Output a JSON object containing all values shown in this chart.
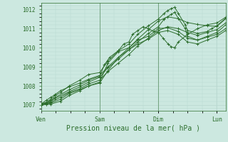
{
  "bg_color": "#cce8e0",
  "line_color": "#2d6e2d",
  "grid_color": "#b8d8d0",
  "ylabel_ticks": [
    1007,
    1008,
    1009,
    1010,
    1011,
    1012
  ],
  "xlabel": "Pression niveau de la mer( hPa )",
  "day_labels": [
    "Ven",
    "Sam",
    "Dim",
    "Lun"
  ],
  "day_positions": [
    0,
    0.333,
    0.667,
    1.0
  ],
  "xlim": [
    0.0,
    1.05
  ],
  "ylim": [
    1006.7,
    1012.35
  ],
  "series": [
    [
      [
        0.0,
        1007.05
      ],
      [
        0.03,
        1007.25
      ],
      [
        0.055,
        1007.4
      ],
      [
        0.08,
        1007.55
      ],
      [
        0.11,
        1007.75
      ],
      [
        0.16,
        1007.95
      ],
      [
        0.22,
        1008.15
      ],
      [
        0.27,
        1008.35
      ],
      [
        0.333,
        1008.55
      ],
      [
        0.38,
        1009.0
      ],
      [
        0.44,
        1009.5
      ],
      [
        0.5,
        1010.0
      ],
      [
        0.55,
        1010.45
      ],
      [
        0.61,
        1010.95
      ],
      [
        0.667,
        1011.4
      ],
      [
        0.72,
        1011.62
      ],
      [
        0.78,
        1011.52
      ],
      [
        0.833,
        1011.32
      ],
      [
        0.89,
        1011.22
      ],
      [
        0.944,
        1011.15
      ],
      [
        1.0,
        1011.12
      ],
      [
        1.05,
        1011.52
      ]
    ],
    [
      [
        0.0,
        1007.05
      ],
      [
        0.03,
        1007.15
      ],
      [
        0.055,
        1007.3
      ],
      [
        0.08,
        1007.5
      ],
      [
        0.11,
        1007.65
      ],
      [
        0.16,
        1008.0
      ],
      [
        0.22,
        1008.3
      ],
      [
        0.27,
        1008.6
      ],
      [
        0.333,
        1008.7
      ],
      [
        0.38,
        1009.3
      ],
      [
        0.44,
        1009.85
      ],
      [
        0.5,
        1010.2
      ],
      [
        0.55,
        1010.7
      ],
      [
        0.61,
        1011.15
      ],
      [
        0.667,
        1011.5
      ],
      [
        0.7,
        1011.8
      ],
      [
        0.72,
        1011.95
      ],
      [
        0.74,
        1012.05
      ],
      [
        0.76,
        1012.12
      ],
      [
        0.78,
        1011.8
      ],
      [
        0.82,
        1011.2
      ],
      [
        0.833,
        1010.9
      ],
      [
        0.89,
        1010.75
      ],
      [
        0.944,
        1010.85
      ],
      [
        0.97,
        1011.0
      ],
      [
        1.0,
        1011.15
      ],
      [
        1.05,
        1011.55
      ]
    ],
    [
      [
        0.0,
        1007.05
      ],
      [
        0.03,
        1007.1
      ],
      [
        0.055,
        1007.25
      ],
      [
        0.08,
        1007.4
      ],
      [
        0.16,
        1007.8
      ],
      [
        0.22,
        1008.05
      ],
      [
        0.27,
        1008.3
      ],
      [
        0.333,
        1008.5
      ],
      [
        0.36,
        1009.1
      ],
      [
        0.39,
        1009.5
      ],
      [
        0.44,
        1009.85
      ],
      [
        0.47,
        1010.2
      ],
      [
        0.5,
        1010.3
      ],
      [
        0.52,
        1010.7
      ],
      [
        0.55,
        1010.9
      ],
      [
        0.58,
        1011.1
      ],
      [
        0.61,
        1011.0
      ],
      [
        0.64,
        1010.85
      ],
      [
        0.667,
        1010.8
      ],
      [
        0.694,
        1010.5
      ],
      [
        0.722,
        1010.2
      ],
      [
        0.74,
        1010.05
      ],
      [
        0.76,
        1010.0
      ],
      [
        0.78,
        1010.3
      ],
      [
        0.833,
        1010.7
      ],
      [
        0.89,
        1011.0
      ],
      [
        0.944,
        1011.2
      ],
      [
        1.0,
        1011.3
      ],
      [
        1.05,
        1011.6
      ]
    ],
    [
      [
        0.0,
        1007.05
      ],
      [
        0.03,
        1007.1
      ],
      [
        0.055,
        1007.2
      ],
      [
        0.08,
        1007.35
      ],
      [
        0.16,
        1007.7
      ],
      [
        0.22,
        1007.95
      ],
      [
        0.27,
        1008.2
      ],
      [
        0.333,
        1008.45
      ],
      [
        0.38,
        1008.95
      ],
      [
        0.44,
        1009.4
      ],
      [
        0.5,
        1009.9
      ],
      [
        0.55,
        1010.3
      ],
      [
        0.61,
        1010.75
      ],
      [
        0.667,
        1011.1
      ],
      [
        0.7,
        1011.5
      ],
      [
        0.74,
        1011.75
      ],
      [
        0.76,
        1011.85
      ],
      [
        0.78,
        1011.55
      ],
      [
        0.82,
        1011.0
      ],
      [
        0.833,
        1010.6
      ],
      [
        0.89,
        1010.4
      ],
      [
        0.944,
        1010.6
      ],
      [
        1.0,
        1010.8
      ],
      [
        1.05,
        1011.2
      ]
    ],
    [
      [
        0.0,
        1007.0
      ],
      [
        0.055,
        1007.15
      ],
      [
        0.11,
        1007.4
      ],
      [
        0.16,
        1007.65
      ],
      [
        0.22,
        1007.85
      ],
      [
        0.27,
        1008.1
      ],
      [
        0.333,
        1008.3
      ],
      [
        0.38,
        1008.75
      ],
      [
        0.44,
        1009.2
      ],
      [
        0.5,
        1009.65
      ],
      [
        0.55,
        1010.1
      ],
      [
        0.61,
        1010.5
      ],
      [
        0.667,
        1010.9
      ],
      [
        0.72,
        1011.1
      ],
      [
        0.78,
        1011.0
      ],
      [
        0.833,
        1010.8
      ],
      [
        0.89,
        1010.65
      ],
      [
        0.944,
        1010.8
      ],
      [
        1.0,
        1010.95
      ],
      [
        1.05,
        1011.3
      ]
    ],
    [
      [
        0.0,
        1007.0
      ],
      [
        0.03,
        1007.05
      ],
      [
        0.055,
        1007.1
      ],
      [
        0.11,
        1007.3
      ],
      [
        0.16,
        1007.6
      ],
      [
        0.22,
        1007.8
      ],
      [
        0.27,
        1008.0
      ],
      [
        0.333,
        1008.2
      ],
      [
        0.38,
        1009.2
      ],
      [
        0.44,
        1009.8
      ],
      [
        0.5,
        1010.0
      ],
      [
        0.55,
        1010.4
      ],
      [
        0.61,
        1010.6
      ],
      [
        0.667,
        1011.0
      ],
      [
        0.72,
        1011.05
      ],
      [
        0.78,
        1010.85
      ],
      [
        0.833,
        1010.5
      ],
      [
        0.89,
        1010.4
      ],
      [
        0.944,
        1010.55
      ],
      [
        1.0,
        1010.7
      ],
      [
        1.05,
        1011.0
      ]
    ],
    [
      [
        0.0,
        1007.0
      ],
      [
        0.03,
        1007.05
      ],
      [
        0.055,
        1007.05
      ],
      [
        0.11,
        1007.2
      ],
      [
        0.16,
        1007.5
      ],
      [
        0.22,
        1007.75
      ],
      [
        0.27,
        1008.0
      ],
      [
        0.333,
        1008.15
      ],
      [
        0.38,
        1008.8
      ],
      [
        0.44,
        1009.5
      ],
      [
        0.5,
        1009.9
      ],
      [
        0.55,
        1010.2
      ],
      [
        0.61,
        1010.45
      ],
      [
        0.667,
        1010.8
      ],
      [
        0.72,
        1010.9
      ],
      [
        0.78,
        1010.7
      ],
      [
        0.833,
        1010.3
      ],
      [
        0.89,
        1010.2
      ],
      [
        0.944,
        1010.4
      ],
      [
        1.0,
        1010.6
      ],
      [
        1.05,
        1010.9
      ]
    ]
  ]
}
